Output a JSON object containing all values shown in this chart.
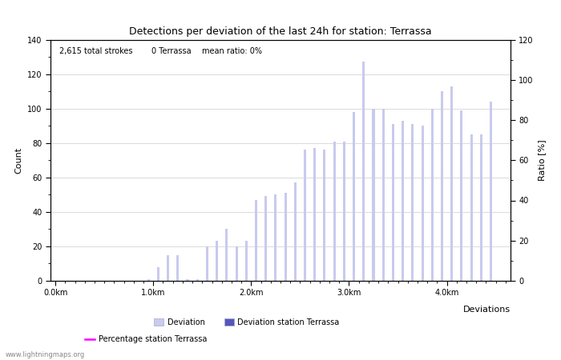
{
  "title": "Detections per deviation of the last 24h for station: Terrassa",
  "subtitle_parts": [
    "2,615 total strokes",
    "0 Terrassa",
    "mean ratio: 0%"
  ],
  "ylabel_left": "Count",
  "ylabel_right": "Ratio [%]",
  "xlabel": "Deviations",
  "ylim_left": [
    0,
    140
  ],
  "ylim_right": [
    0,
    120
  ],
  "yticks_left": [
    0,
    20,
    40,
    60,
    80,
    100,
    120,
    140
  ],
  "yticks_right": [
    0,
    20,
    40,
    60,
    80,
    100,
    120
  ],
  "xtick_positions": [
    0.0,
    1.0,
    2.0,
    3.0,
    4.0
  ],
  "xtick_labels": [
    "0.0km",
    "1.0km",
    "2.0km",
    "3.0km",
    "4.0km"
  ],
  "xlim": [
    -0.05,
    4.65
  ],
  "bar_positions": [
    0.05,
    0.15,
    0.25,
    0.35,
    0.45,
    0.55,
    0.65,
    0.75,
    0.85,
    0.95,
    1.05,
    1.15,
    1.25,
    1.35,
    1.45,
    1.55,
    1.65,
    1.75,
    1.85,
    1.95,
    2.05,
    2.15,
    2.25,
    2.35,
    2.45,
    2.55,
    2.65,
    2.75,
    2.85,
    2.95,
    3.05,
    3.15,
    3.25,
    3.35,
    3.45,
    3.55,
    3.65,
    3.75,
    3.85,
    3.95,
    4.05,
    4.15,
    4.25,
    4.35,
    4.45
  ],
  "bar_values": [
    0,
    0,
    0,
    0,
    0,
    0,
    0,
    0,
    0,
    1,
    8,
    15,
    15,
    1,
    1,
    20,
    23,
    30,
    20,
    23,
    47,
    49,
    50,
    51,
    57,
    76,
    77,
    76,
    81,
    81,
    98,
    127,
    100,
    100,
    91,
    93,
    91,
    90,
    100,
    110,
    113,
    99,
    85,
    85,
    104
  ],
  "bar_color_light": "#c8caee",
  "bar_color_dark": "#5555bb",
  "bar_width": 0.025,
  "background_color": "#ffffff",
  "grid_color": "#cccccc",
  "watermark": "www.lightningmaps.org",
  "legend_deviation": "Deviation",
  "legend_station": "Deviation station Terrassa",
  "legend_percentage": "Percentage station Terrassa",
  "title_fontsize": 9,
  "subtitle_fontsize": 7,
  "axis_label_fontsize": 8,
  "tick_fontsize": 7,
  "legend_fontsize": 7
}
